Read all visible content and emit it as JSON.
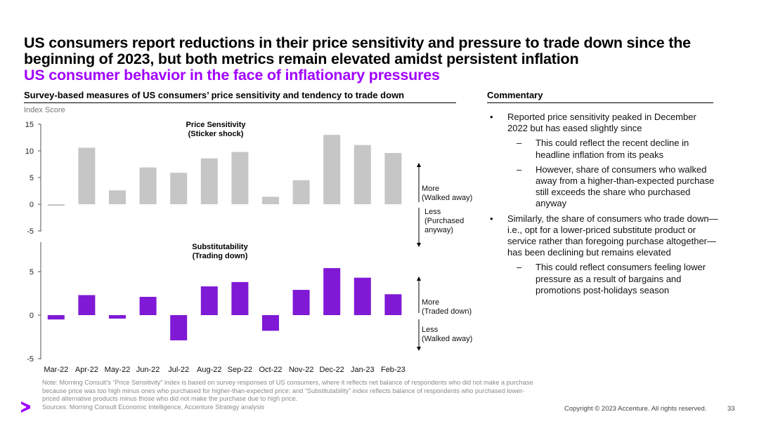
{
  "title": "US consumers report reductions in their price sensitivity and pressure to trade down since the beginning of 2023, but both metrics remain elevated amidst persistent inflation",
  "subtitle": "US consumer behavior in the face of inflationary pressures",
  "chart_heading": "Survey-based measures of US consumers’ price sensitivity and tendency to trade down",
  "commentary_heading": "Commentary",
  "colors": {
    "accent": "#a100ff",
    "gray_bar": "#c6c6c6",
    "purple_bar": "#7f19d6"
  },
  "chart_data": [
    {
      "type": "bar",
      "title": "Price Sensitivity\n(Sticker shock)",
      "ylabel": "Index Score",
      "categories": [
        "Mar-22",
        "Apr-22",
        "May-22",
        "Jun-22",
        "Jul-22",
        "Aug-22",
        "Sep-22",
        "Oct-22",
        "Nov-22",
        "Dec-22",
        "Jan-23",
        "Feb-23"
      ],
      "values": [
        -0.3,
        10.6,
        2.6,
        6.9,
        5.9,
        8.6,
        9.8,
        1.4,
        4.5,
        13.0,
        11.1,
        9.6
      ],
      "yticks": [
        15,
        10,
        5,
        0,
        -5
      ],
      "ylim": [
        -5,
        15
      ],
      "annotations": {
        "more": "More\n(Walked away)",
        "less": "Less\n(Purchased\nanyway)"
      }
    },
    {
      "type": "bar",
      "title": "Substitutability\n(Trading down)",
      "categories": [
        "Mar-22",
        "Apr-22",
        "May-22",
        "Jun-22",
        "Jul-22",
        "Aug-22",
        "Sep-22",
        "Oct-22",
        "Nov-22",
        "Dec-22",
        "Jan-23",
        "Feb-23"
      ],
      "values": [
        -0.5,
        2.3,
        -0.4,
        2.1,
        -2.9,
        3.3,
        3.8,
        -1.8,
        2.9,
        5.4,
        4.3,
        2.4
      ],
      "yticks": [
        5,
        0,
        -5
      ],
      "ylim": [
        -5,
        7.5
      ],
      "annotations": {
        "more": "More\n(Traded down)",
        "less": "Less\n(Walked away)"
      }
    }
  ],
  "commentary": [
    {
      "level": 1,
      "marker": "•",
      "text": "Reported price sensitivity peaked in December 2022 but has eased slightly since"
    },
    {
      "level": 2,
      "marker": "–",
      "text": "This could reflect the recent decline in headline inflation from its peaks"
    },
    {
      "level": 2,
      "marker": "–",
      "text": "However, share of consumers who walked away from a higher-than-expected purchase still exceeds the share who purchased anyway"
    },
    {
      "level": 1,
      "marker": "•",
      "text": "Similarly, the share of consumers who trade down—i.e., opt for a lower-priced substitute product or service rather than foregoing purchase altogether—has been declining but remains elevated"
    },
    {
      "level": 2,
      "marker": "–",
      "text": "This could reflect consumers feeling lower pressure as a result of bargains and promotions post-holidays season"
    }
  ],
  "note": "Note: Morning Consult’s “Price Sensitivity” index is based on survey responses of US consumers, where it reflects net balance of respondents who did not make a purchase because price was too high minus ones who purchased for higher-than-expected price; and “Substitutability” index reflects balance of respondents who purchased lower-priced alternative products minus those who did not make the purchase due to high price.",
  "sources": "Sources: Morning Consult Economic Intelligence, Accenture Strategy analysis",
  "copyright": "Copyright © 2023 Accenture. All rights reserved.",
  "page_number": "33"
}
